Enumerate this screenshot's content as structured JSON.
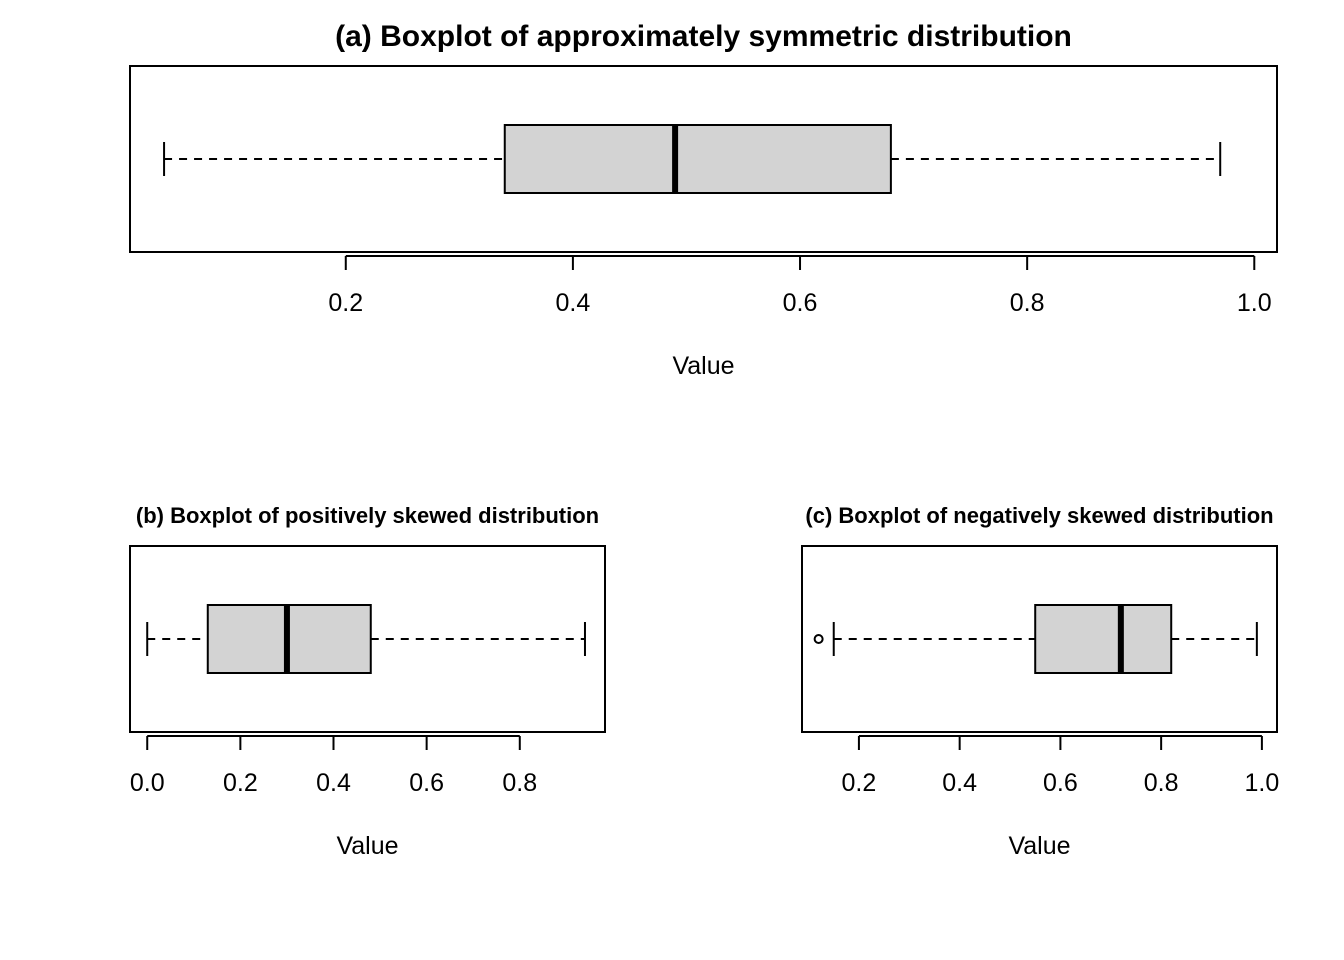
{
  "chart_data": [
    {
      "type": "boxplot",
      "orientation": "horizontal",
      "title": "(a) Boxplot of approximately symmetric distribution",
      "xlabel": "Value",
      "ylabel": "",
      "xlim": [
        0.01,
        1.02
      ],
      "ticks": [
        0.2,
        0.4,
        0.6,
        0.8,
        1.0
      ],
      "tick_labels": [
        "0.2",
        "0.4",
        "0.6",
        "0.8",
        "1.0"
      ],
      "box": {
        "whisker_low": 0.04,
        "q1": 0.34,
        "median": 0.49,
        "q3": 0.68,
        "whisker_high": 0.97,
        "outliers": []
      },
      "box_fill": "#d3d3d3",
      "grid": false
    },
    {
      "type": "boxplot",
      "orientation": "horizontal",
      "title": "(b) Boxplot of positively skewed distribution",
      "xlabel": "Value",
      "ylabel": "",
      "xlim": [
        -0.037,
        0.983
      ],
      "ticks": [
        0.0,
        0.2,
        0.4,
        0.6,
        0.8
      ],
      "tick_labels": [
        "0.0",
        "0.2",
        "0.4",
        "0.6",
        "0.8"
      ],
      "box": {
        "whisker_low": 0.0,
        "q1": 0.13,
        "median": 0.3,
        "q3": 0.48,
        "whisker_high": 0.94,
        "outliers": []
      },
      "box_fill": "#d3d3d3",
      "grid": false
    },
    {
      "type": "boxplot",
      "orientation": "horizontal",
      "title": "(c) Boxplot of negatively skewed distribution",
      "xlabel": "Value",
      "ylabel": "",
      "xlim": [
        0.087,
        1.03
      ],
      "ticks": [
        0.2,
        0.4,
        0.6,
        0.8,
        1.0
      ],
      "tick_labels": [
        "0.2",
        "0.4",
        "0.6",
        "0.8",
        "1.0"
      ],
      "box": {
        "whisker_low": 0.15,
        "q1": 0.55,
        "median": 0.72,
        "q3": 0.82,
        "whisker_high": 0.99,
        "outliers": [
          0.12
        ]
      },
      "box_fill": "#d3d3d3",
      "grid": false
    }
  ]
}
